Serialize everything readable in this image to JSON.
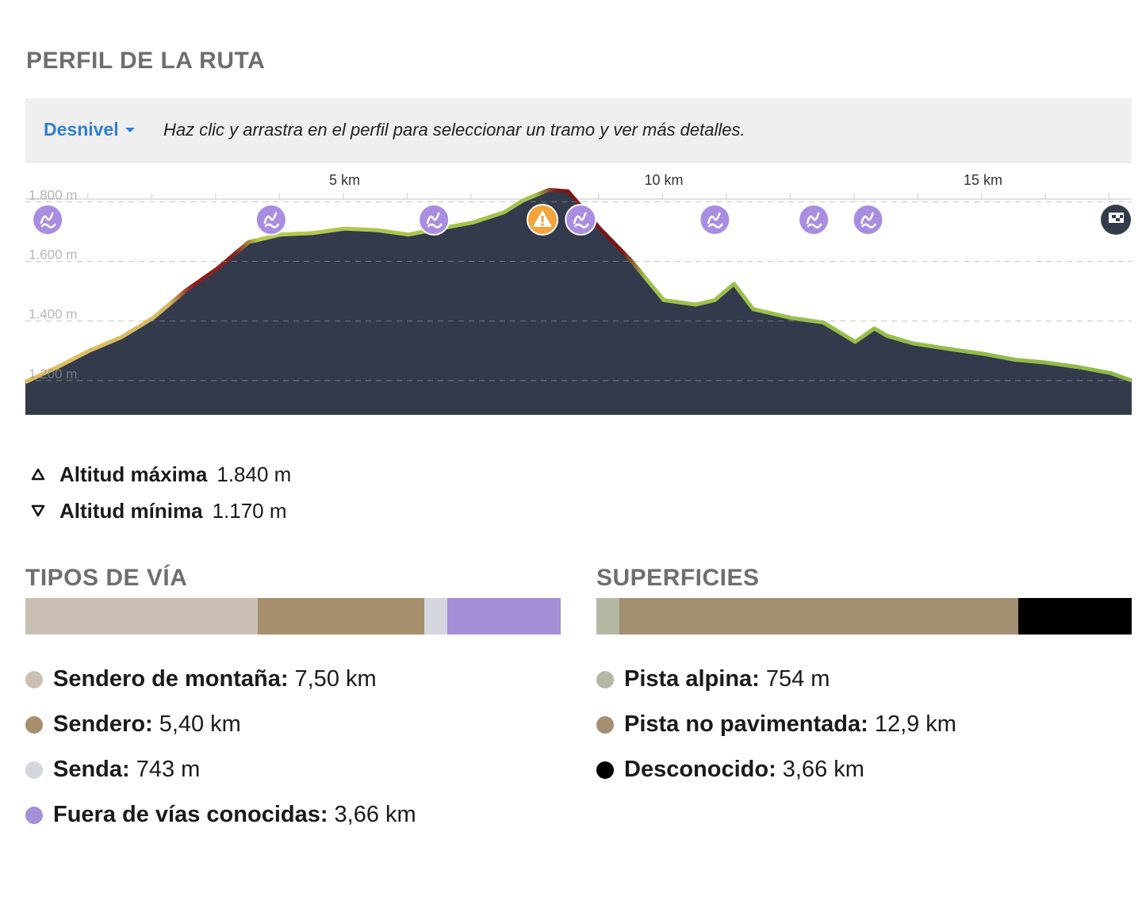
{
  "profile": {
    "title": "PERFIL DE LA RUTA",
    "dropdown_label": "Desnivel",
    "hint": "Haz clic y arrastra en el perfil para seleccionar un tramo y ver más detalles."
  },
  "chart_data": {
    "type": "area",
    "title": "",
    "xlabel": "",
    "ylabel": "",
    "x_unit": "km",
    "y_unit": "m",
    "x_ticks": [
      "5 km",
      "10 km",
      "15 km"
    ],
    "y_ticks": [
      "1.800 m",
      "1.600 m",
      "1.400 m",
      "1.200 m"
    ],
    "xlim": [
      0,
      17.33
    ],
    "ylim": [
      1085,
      1865
    ],
    "grid": "horizontal dashed",
    "fill_color": "#323a4b",
    "series": [
      {
        "x": [
          0,
          0.5,
          1.0,
          1.5,
          2.0,
          2.5,
          3.0,
          3.5,
          4.0,
          4.5,
          5.0,
          5.5,
          6.0,
          6.5,
          7.0,
          7.5,
          7.8,
          8.2,
          8.5,
          9.0,
          9.5,
          10.0,
          10.5,
          10.8,
          11.1,
          11.4,
          12.0,
          12.5,
          13.0,
          13.3,
          13.5,
          13.9,
          14.5,
          15.0,
          15.5,
          16.0,
          16.5,
          17.0,
          17.33
        ],
        "y": [
          1195,
          1245,
          1300,
          1345,
          1410,
          1500,
          1575,
          1665,
          1690,
          1695,
          1710,
          1705,
          1690,
          1710,
          1730,
          1765,
          1805,
          1840,
          1835,
          1710,
          1600,
          1470,
          1455,
          1470,
          1525,
          1440,
          1410,
          1395,
          1330,
          1375,
          1350,
          1325,
          1305,
          1290,
          1270,
          1260,
          1245,
          1225,
          1200
        ]
      }
    ],
    "waypoints": [
      {
        "km": 0.35,
        "type": "waypoint"
      },
      {
        "km": 3.85,
        "type": "waypoint"
      },
      {
        "km": 6.4,
        "type": "waypoint"
      },
      {
        "km": 8.1,
        "type": "warning"
      },
      {
        "km": 8.7,
        "type": "waypoint"
      },
      {
        "km": 10.8,
        "type": "waypoint"
      },
      {
        "km": 12.35,
        "type": "waypoint"
      },
      {
        "km": 13.2,
        "type": "waypoint"
      },
      {
        "km": 17.1,
        "type": "finish"
      }
    ]
  },
  "stats": {
    "max_label": "Altitud máxima",
    "max_value": "1.840 m",
    "min_label": "Altitud mínima",
    "min_value": "1.170 m"
  },
  "road_types": {
    "title": "TIPOS DE VÍA",
    "items": [
      {
        "name": "Sendero de montaña:",
        "value": "7,50 km",
        "color": "#c9c0b3",
        "share": 0.4338
      },
      {
        "name": "Sendero:",
        "value": "5,40 km",
        "color": "#a78e6c",
        "share": 0.3123
      },
      {
        "name": "Senda:",
        "value": "743 m",
        "color": "#d3d6dc",
        "share": 0.043
      },
      {
        "name": "Fuera de vías conocidas:",
        "value": "3,66 km",
        "color": "#a58fd8",
        "share": 0.2117
      }
    ]
  },
  "surfaces": {
    "title": "SUPERFICIES",
    "items": [
      {
        "name": "Pista alpina:",
        "value": "754 m",
        "color": "#b3b8a3",
        "share": 0.0435
      },
      {
        "name": "Pista no pavimentada:",
        "value": "12,9 km",
        "color": "#a38f72",
        "share": 0.7452
      },
      {
        "name": "Desconocido:",
        "value": "3,66 km",
        "color": "#000000",
        "share": 0.2113
      }
    ]
  }
}
